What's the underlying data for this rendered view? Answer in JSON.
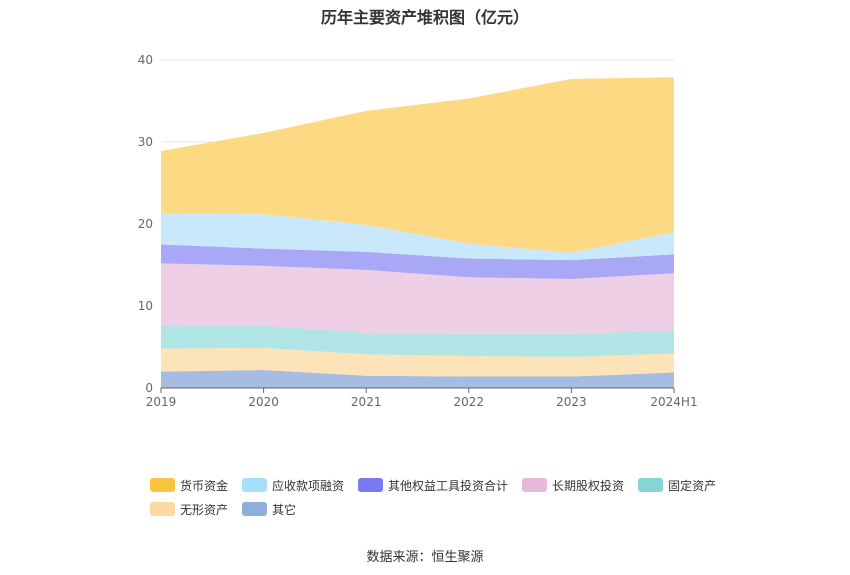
{
  "chart_data": {
    "type": "area",
    "stacked": true,
    "title": "历年主要资产堆积图（亿元）",
    "categories": [
      "2019",
      "2020",
      "2021",
      "2022",
      "2023",
      "2024H1"
    ],
    "ylim": [
      0,
      40
    ],
    "yticks": [
      0,
      10,
      20,
      30,
      40
    ],
    "grid": true,
    "legend_position": "bottom",
    "series": [
      {
        "name": "其它",
        "color": "#9db5e0",
        "values": [
          2.0,
          2.2,
          1.5,
          1.4,
          1.4,
          1.9
        ]
      },
      {
        "name": "无形资产",
        "color": "#fde0b0",
        "values": [
          2.8,
          2.7,
          2.6,
          2.5,
          2.4,
          2.3
        ]
      },
      {
        "name": "固定资产",
        "color": "#a8e2e2",
        "values": [
          2.9,
          2.7,
          2.6,
          2.7,
          2.8,
          2.8
        ]
      },
      {
        "name": "长期股权投资",
        "color": "#eccae2",
        "values": [
          7.5,
          7.3,
          7.7,
          6.9,
          6.7,
          7.0
        ]
      },
      {
        "name": "其他权益工具投资合计",
        "color": "#a09ef5",
        "values": [
          2.3,
          2.1,
          2.2,
          2.3,
          2.3,
          2.3
        ]
      },
      {
        "name": "应收款项融资",
        "color": "#c4e6fb",
        "values": [
          3.8,
          4.2,
          3.3,
          1.8,
          0.9,
          2.7
        ]
      },
      {
        "name": "货币资金",
        "color": "#fdd577",
        "values": [
          7.6,
          9.9,
          13.9,
          17.7,
          21.2,
          18.9
        ]
      }
    ]
  },
  "legend": [
    {
      "label": "货币资金",
      "color": "#fbc440"
    },
    {
      "label": "应收款项融资",
      "color": "#a7defa"
    },
    {
      "label": "其他权益工具投资合计",
      "color": "#7b79f0"
    },
    {
      "label": "长期股权投资",
      "color": "#e8b8d8"
    },
    {
      "label": "固定资产",
      "color": "#86d6d8"
    },
    {
      "label": "无形资产",
      "color": "#fcd9a3"
    },
    {
      "label": "其它",
      "color": "#8eaedc"
    }
  ],
  "source": "数据来源：恒生聚源"
}
